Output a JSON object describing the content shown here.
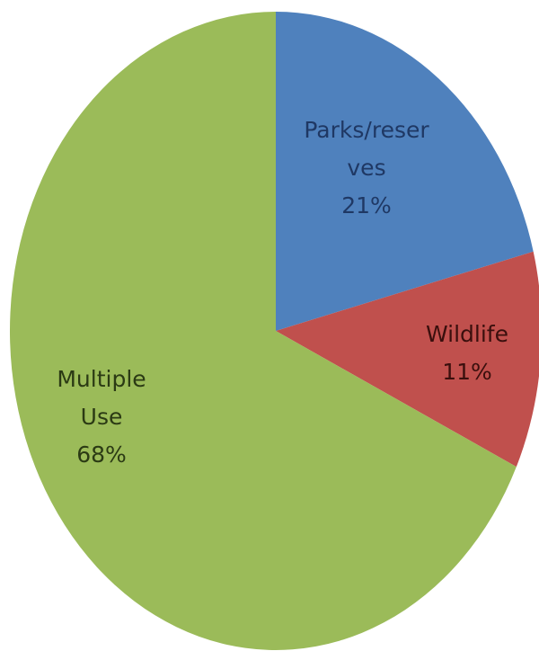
{
  "chart_data": {
    "type": "pie",
    "title": "",
    "slices": [
      {
        "label_lines": [
          "Parks/reser",
          "ves"
        ],
        "value": 21,
        "percent_label": "21%",
        "color": "#4f81bd",
        "label_color": "#1f3864"
      },
      {
        "label_lines": [
          "Wildlife"
        ],
        "value": 11,
        "percent_label": "11%",
        "color": "#c0504d",
        "label_color": "#3a0f0d"
      },
      {
        "label_lines": [
          "Multiple",
          "Use"
        ],
        "value": 68,
        "percent_label": "68%",
        "color": "#9bbb59",
        "label_color": "#2b3a14"
      }
    ],
    "start_angle_deg": 0,
    "direction": "clockwise",
    "legend": "none",
    "data_labels": "inside"
  }
}
